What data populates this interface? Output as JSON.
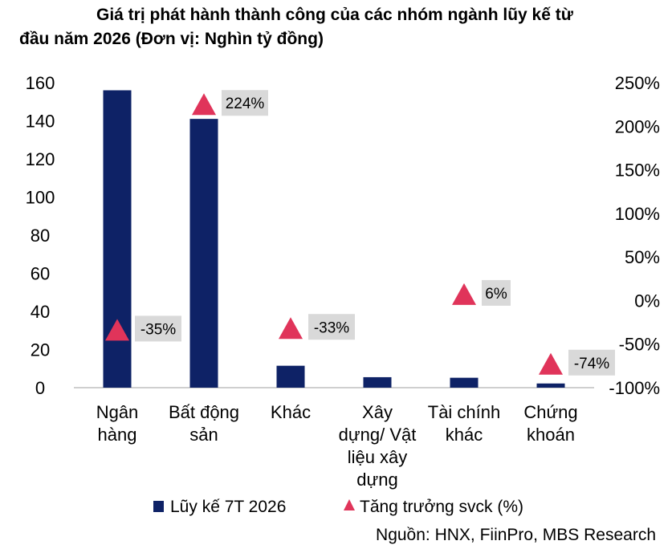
{
  "title": {
    "line1": "Giá trị phát hành thành công của các nhóm ngành lũy kế từ",
    "line2": "đầu năm 2026 (Đơn vị: Nghìn tỷ đồng)"
  },
  "source": "Nguồn: HNX, FiinPro, MBS Research",
  "chart_data": {
    "type": "bar",
    "categories": [
      [
        "Ngân",
        "hàng"
      ],
      [
        "Bất động",
        "sản"
      ],
      [
        "Khác"
      ],
      [
        "Xây",
        "dựng/ Vật",
        "liệu xây",
        "dựng"
      ],
      [
        "Tài chính",
        "khác"
      ],
      [
        "Chứng",
        "khoán"
      ]
    ],
    "series": [
      {
        "name": "Lũy kế 7T 2026",
        "type": "bar",
        "axis": "left",
        "color": "#0e2266",
        "values": [
          156,
          141,
          11.5,
          5.5,
          5.2,
          2.2
        ]
      },
      {
        "name": "Tăng trưởng svck (%)",
        "type": "marker-triangle",
        "axis": "right",
        "color": "#e0345a",
        "values": [
          -35,
          224,
          -33,
          null,
          6,
          -74
        ],
        "labels": [
          "-35%",
          "224%",
          "-33%",
          null,
          "6%",
          "-74%"
        ]
      }
    ],
    "y_left": {
      "ylim": [
        0,
        160
      ],
      "ticks": [
        0,
        20,
        40,
        60,
        80,
        100,
        120,
        140,
        160
      ],
      "tick_labels": [
        "0",
        "20",
        "40",
        "60",
        "80",
        "100",
        "120",
        "140",
        "160"
      ]
    },
    "y_right": {
      "ylim": [
        -100,
        250
      ],
      "ticks": [
        -100,
        -50,
        0,
        50,
        100,
        150,
        200,
        250
      ],
      "tick_labels": [
        "-100%",
        "-50%",
        "0%",
        "50%",
        "100%",
        "150%",
        "200%",
        "250%"
      ]
    },
    "grid": false,
    "legend_position": "bottom",
    "label_box_color": "#d9d9d9"
  }
}
